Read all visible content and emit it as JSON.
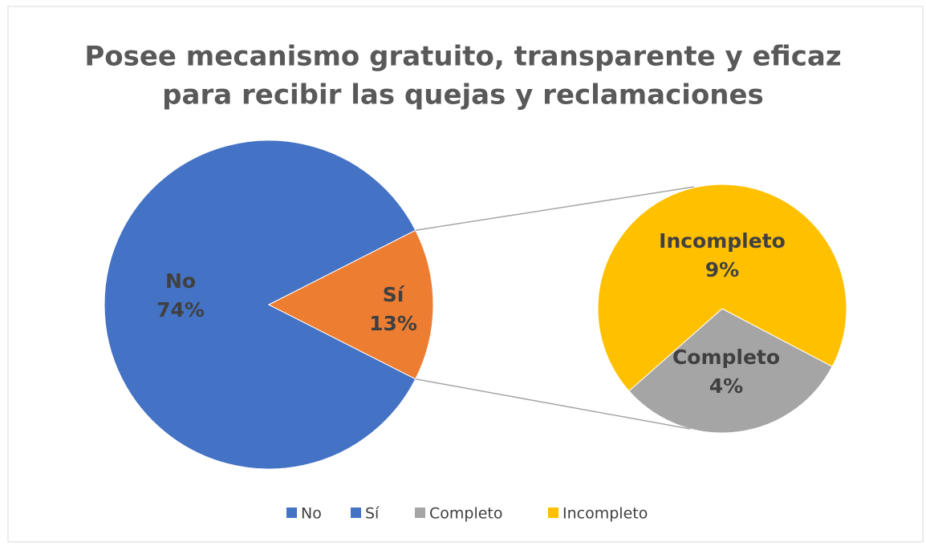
{
  "chart_data": {
    "type": "pie_of_pie",
    "title": [
      "Posee mecanismo gratuito, transparente y eficaz",
      "para recibir las quejas y reclamaciones"
    ],
    "categories": [
      "No",
      "Sí"
    ],
    "values": [
      74,
      13
    ],
    "value_labels": [
      "74%",
      "13%"
    ],
    "colors": [
      "#4472c4",
      "#ed7d31"
    ],
    "sub": {
      "categories": [
        "Completo",
        "Incompleto"
      ],
      "values": [
        4,
        9
      ],
      "value_labels": [
        "4%",
        "9%"
      ],
      "colors": [
        "#a5a5a5",
        "#ffc000"
      ]
    },
    "legend_colors": [
      "#4472c4",
      "#4472c4",
      "#a5a5a5",
      "#ffc000"
    ]
  }
}
